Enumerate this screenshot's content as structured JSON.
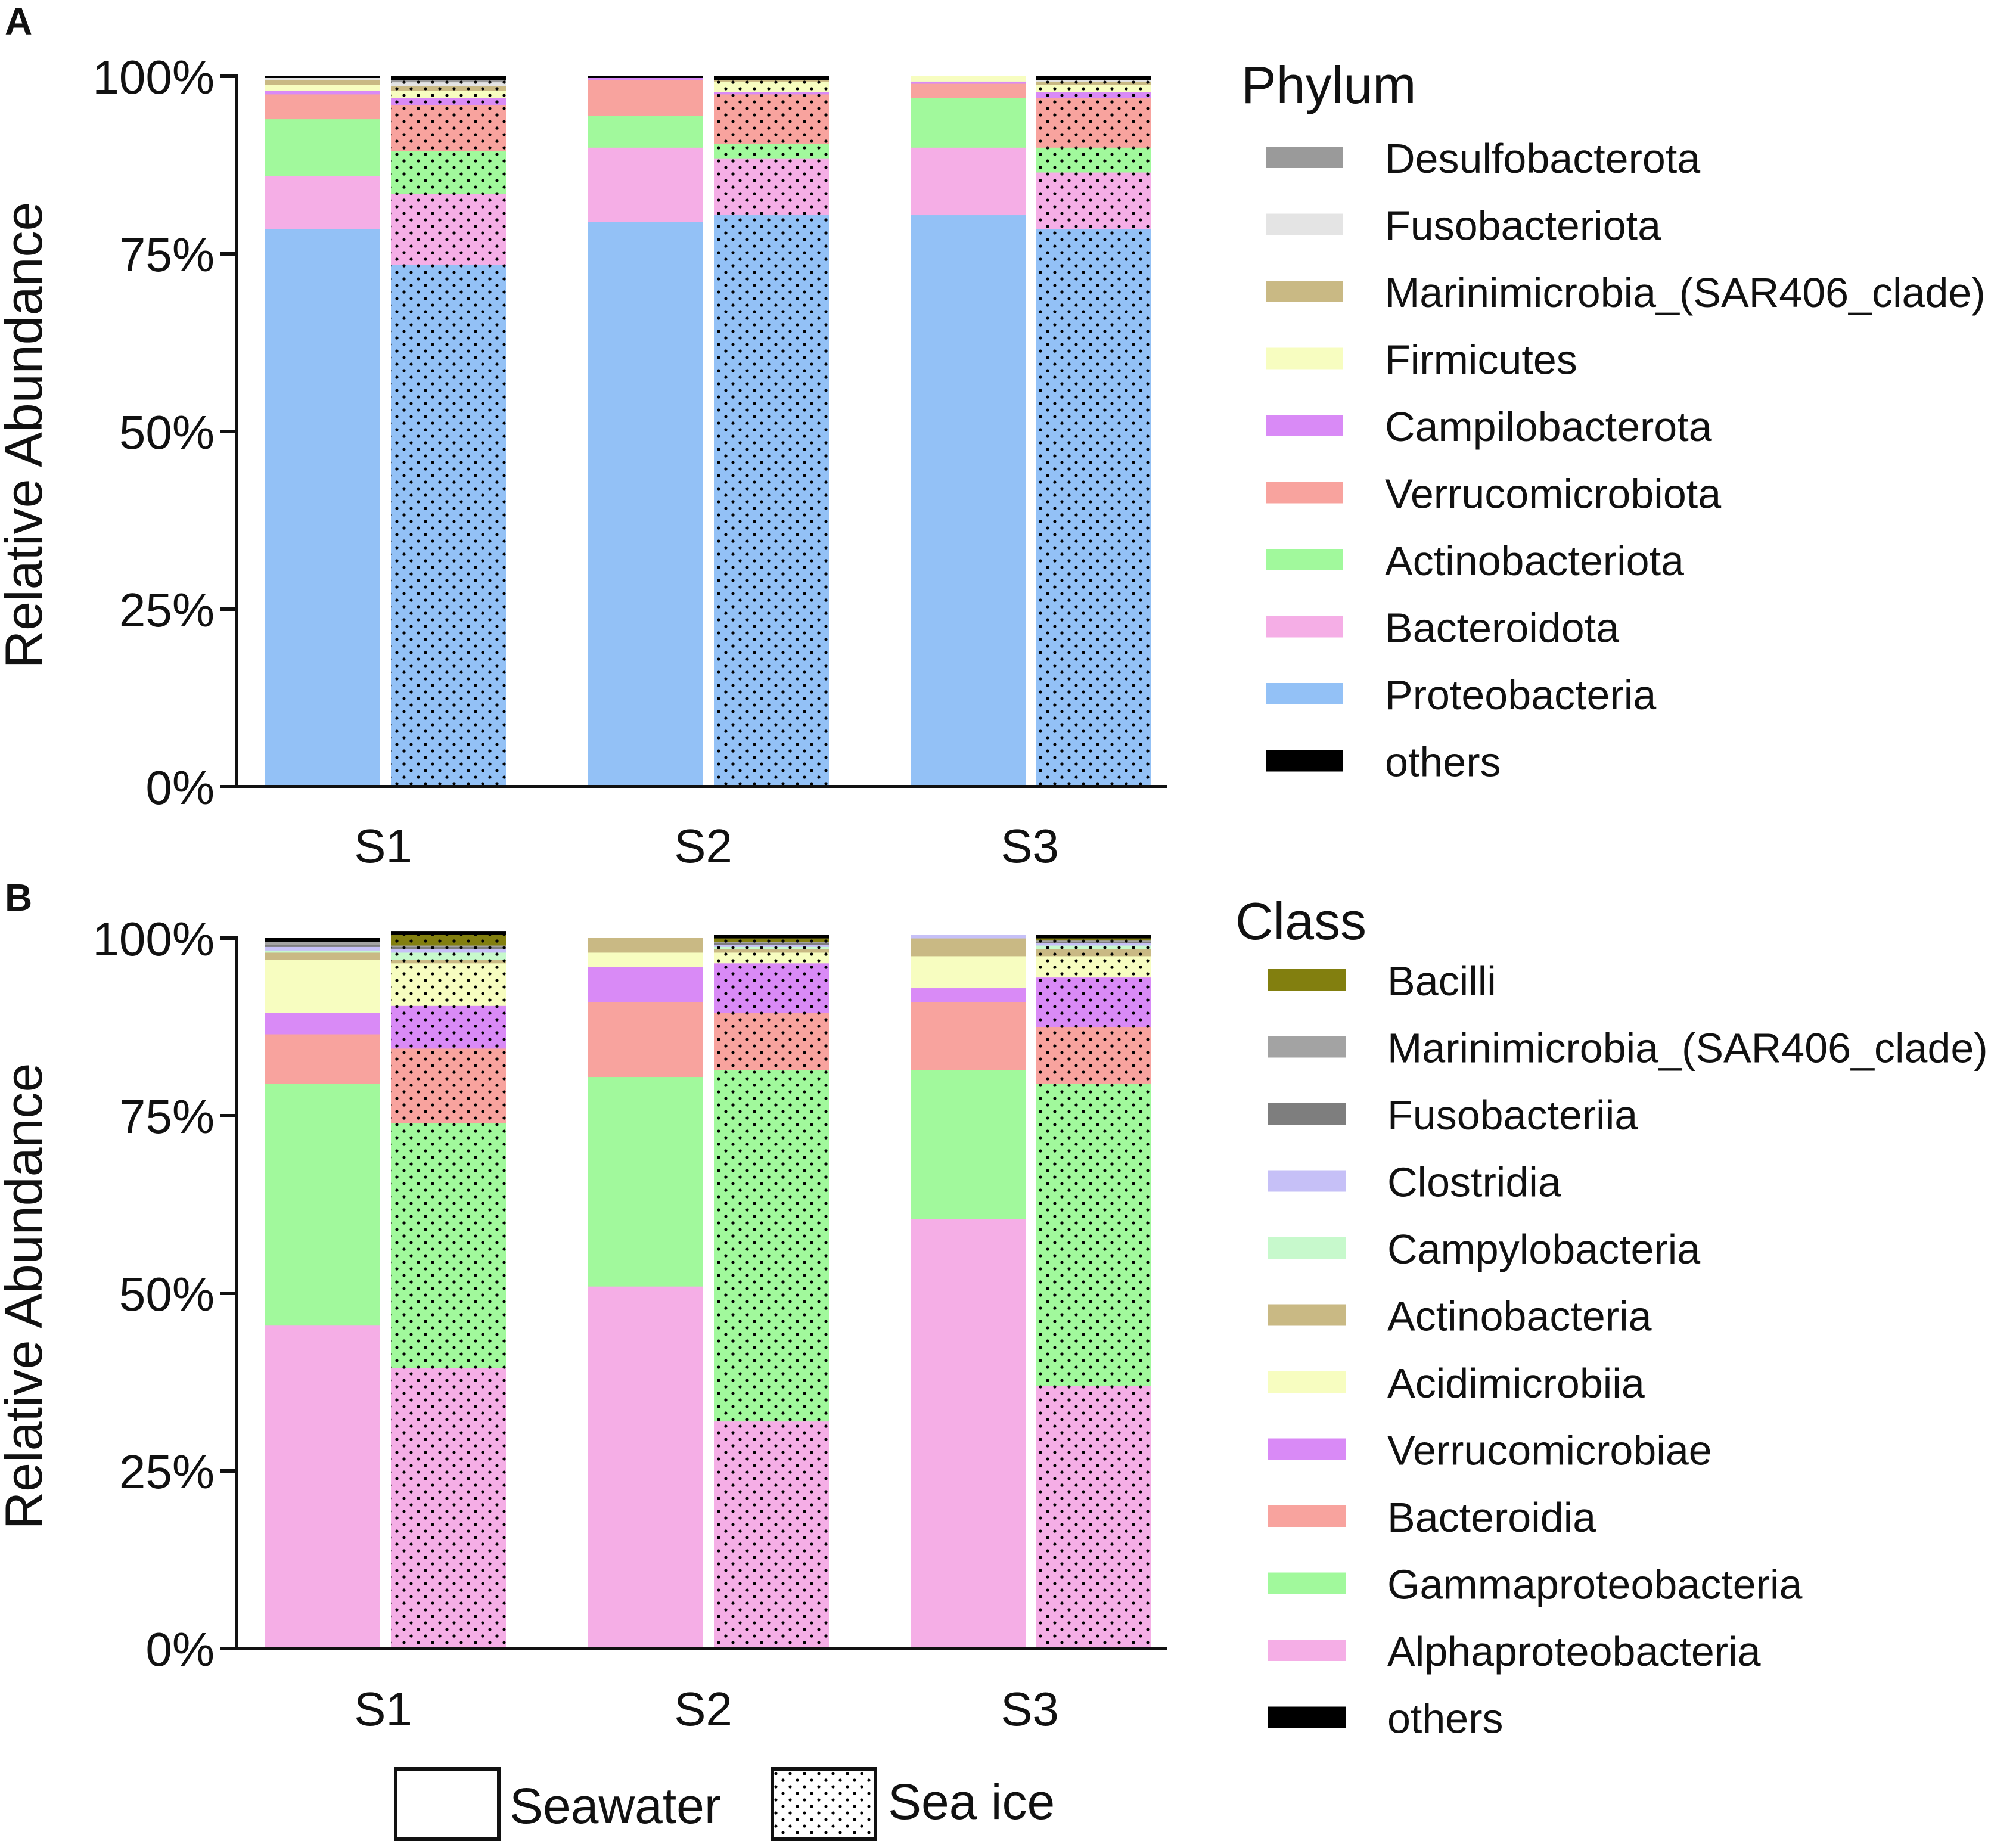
{
  "panels": {
    "a": {
      "label": "A",
      "legend_title": "Phylum",
      "ylabel": "Relative Abundance"
    },
    "b": {
      "label": "B",
      "legend_title": "Class",
      "ylabel": "Relative Abundance"
    }
  },
  "sample_legend": {
    "seawater": "Seawater",
    "sea_ice": "Sea ice"
  },
  "chart_data": [
    {
      "panel": "A",
      "type": "bar",
      "stacked": true,
      "title": "",
      "xlabel": "",
      "ylabel": "Relative Abundance",
      "ylim": [
        0,
        100
      ],
      "yticks": [
        "0%",
        "25%",
        "50%",
        "75%",
        "100%"
      ],
      "categories": [
        "S1",
        "S2",
        "S3"
      ],
      "legend_title": "Phylum",
      "legend": "right",
      "groups": [
        "Seawater",
        "Sea ice"
      ],
      "series": [
        {
          "name": "Proteobacteria",
          "color": "#93c1f6",
          "seawater": [
            78.5,
            79.5,
            80.5
          ],
          "sea_ice": [
            73.5,
            80.5,
            78.5
          ]
        },
        {
          "name": "Bacteroidota",
          "color": "#f5aee6",
          "seawater": [
            7.5,
            10.5,
            9.5
          ],
          "sea_ice": [
            10.0,
            8.0,
            8.0
          ]
        },
        {
          "name": "Actinobacteriota",
          "color": "#a1f99c",
          "seawater": [
            8.0,
            4.5,
            7.0
          ],
          "sea_ice": [
            6.0,
            2.0,
            3.5
          ]
        },
        {
          "name": "Verrucomicrobiota",
          "color": "#f8a39e",
          "seawater": [
            3.5,
            5.0,
            2.0
          ],
          "sea_ice": [
            6.5,
            7.0,
            7.0
          ]
        },
        {
          "name": "Campilobacterota",
          "color": "#d98af6",
          "seawater": [
            0.5,
            0.3,
            0.3
          ],
          "sea_ice": [
            1.0,
            0.3,
            0.8
          ]
        },
        {
          "name": "Firmicutes",
          "color": "#f7fdc0",
          "seawater": [
            0.8,
            0.0,
            0.7
          ],
          "sea_ice": [
            1.0,
            1.5,
            1.0
          ]
        },
        {
          "name": "Marinimicrobia_(SAR406_clade)",
          "color": "#c9b984",
          "seawater": [
            0.7,
            0.0,
            0.0
          ],
          "sea_ice": [
            0.7,
            0.2,
            0.5
          ]
        },
        {
          "name": "Fusobacteriota",
          "color": "#e4e4e4",
          "seawater": [
            0.3,
            0.0,
            0.0
          ],
          "sea_ice": [
            0.5,
            0.0,
            0.2
          ]
        },
        {
          "name": "Desulfobacterota",
          "color": "#9a9a9a",
          "seawater": [
            0.0,
            0.0,
            0.0
          ],
          "sea_ice": [
            0.3,
            0.0,
            0.0
          ]
        },
        {
          "name": "others",
          "color": "#000000",
          "seawater": [
            0.2,
            0.2,
            0.0
          ],
          "sea_ice": [
            0.5,
            0.5,
            0.5
          ]
        }
      ]
    },
    {
      "panel": "B",
      "type": "bar",
      "stacked": true,
      "title": "",
      "xlabel": "",
      "ylabel": "Relative Abundance",
      "ylim": [
        0,
        100
      ],
      "yticks": [
        "0%",
        "25%",
        "50%",
        "75%",
        "100%"
      ],
      "categories": [
        "S1",
        "S2",
        "S3"
      ],
      "legend_title": "Class",
      "legend": "right",
      "groups": [
        "Seawater",
        "Sea ice"
      ],
      "series": [
        {
          "name": "Alphaproteobacteria",
          "color": "#f5aee6",
          "seawater": [
            45.5,
            51.0,
            60.5
          ],
          "sea_ice": [
            39.5,
            32.0,
            37.0
          ]
        },
        {
          "name": "Gammaproteobacteria",
          "color": "#a1f99c",
          "seawater": [
            34.0,
            29.5,
            21.0
          ],
          "sea_ice": [
            34.5,
            49.5,
            42.5
          ]
        },
        {
          "name": "Bacteroidia",
          "color": "#f8a39e",
          "seawater": [
            7.0,
            10.5,
            9.5
          ],
          "sea_ice": [
            10.5,
            8.0,
            8.0
          ]
        },
        {
          "name": "Verrucomicrobiae",
          "color": "#d98af6",
          "seawater": [
            3.0,
            5.0,
            2.0
          ],
          "sea_ice": [
            6.0,
            7.0,
            7.0
          ]
        },
        {
          "name": "Acidimicrobiia",
          "color": "#f7fdc0",
          "seawater": [
            7.5,
            2.0,
            4.5
          ],
          "sea_ice": [
            6.0,
            1.5,
            3.0
          ]
        },
        {
          "name": "Actinobacteria",
          "color": "#c9b984",
          "seawater": [
            1.0,
            2.0,
            2.5
          ],
          "sea_ice": [
            0.5,
            0.5,
            1.0
          ]
        },
        {
          "name": "Campylobacteria",
          "color": "#c7f9cc",
          "seawater": [
            0.3,
            0.0,
            0.0
          ],
          "sea_ice": [
            1.0,
            0.3,
            0.5
          ]
        },
        {
          "name": "Clostridia",
          "color": "#c6c0f7",
          "seawater": [
            0.5,
            0.0,
            0.5
          ],
          "sea_ice": [
            0.5,
            0.3,
            0.3
          ]
        },
        {
          "name": "Fusobacteriia",
          "color": "#7e7e7e",
          "seawater": [
            0.3,
            0.0,
            0.0
          ],
          "sea_ice": [
            0.3,
            0.2,
            0.2
          ]
        },
        {
          "name": "Marinimicrobia_(SAR406_clade)",
          "color": "#a3a3a3",
          "seawater": [
            0.4,
            0.0,
            0.0
          ],
          "sea_ice": [
            0.2,
            0.2,
            0.2
          ]
        },
        {
          "name": "Bacilli",
          "color": "#827f0f",
          "seawater": [
            0.0,
            0.0,
            0.0
          ],
          "sea_ice": [
            1.5,
            0.5,
            0.3
          ]
        },
        {
          "name": "others",
          "color": "#000000",
          "seawater": [
            0.5,
            0.0,
            0.0
          ],
          "sea_ice": [
            0.5,
            0.5,
            0.5
          ]
        }
      ]
    }
  ]
}
